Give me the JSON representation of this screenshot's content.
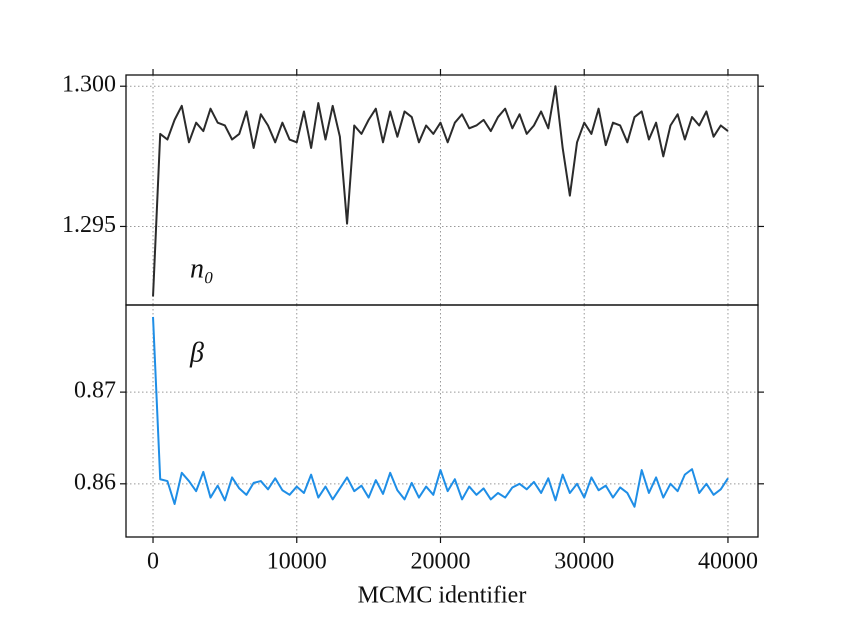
{
  "chart_data": [
    {
      "type": "line",
      "annotation": "n₀",
      "color": "#2b2b2b",
      "x": [
        0,
        500,
        1000,
        1500,
        2000,
        2500,
        3000,
        3500,
        4000,
        4500,
        5000,
        5500,
        6000,
        6500,
        7000,
        7500,
        8000,
        8500,
        9000,
        9500,
        10000,
        10500,
        11000,
        11500,
        12000,
        12500,
        13000,
        13500,
        14000,
        14500,
        15000,
        15500,
        16000,
        16500,
        17000,
        17500,
        18000,
        18500,
        19000,
        19500,
        20000,
        20500,
        21000,
        21500,
        22000,
        22500,
        23000,
        23500,
        24000,
        24500,
        25000,
        25500,
        26000,
        26500,
        27000,
        27500,
        28000,
        28500,
        29000,
        29500,
        30000,
        30500,
        31000,
        31500,
        32000,
        32500,
        33000,
        33500,
        34000,
        34500,
        35000,
        35500,
        36000,
        36500,
        37000,
        37500,
        38000,
        38500,
        39000,
        39500,
        40000
      ],
      "values": [
        1.2925,
        1.2983,
        1.2981,
        1.2988,
        1.2993,
        1.298,
        1.2987,
        1.2984,
        1.2992,
        1.2987,
        1.2986,
        1.2981,
        1.2983,
        1.2991,
        1.2978,
        1.299,
        1.2986,
        1.298,
        1.2987,
        1.2981,
        1.298,
        1.2991,
        1.2978,
        1.2994,
        1.2981,
        1.2993,
        1.2982,
        1.2951,
        1.2986,
        1.2983,
        1.2988,
        1.2992,
        1.298,
        1.2991,
        1.2982,
        1.2991,
        1.2989,
        1.298,
        1.2986,
        1.2983,
        1.2987,
        1.298,
        1.2987,
        1.299,
        1.2985,
        1.2986,
        1.2988,
        1.2984,
        1.2989,
        1.2992,
        1.2985,
        1.299,
        1.2983,
        1.2986,
        1.2991,
        1.2985,
        1.3,
        1.2978,
        1.2961,
        1.298,
        1.2987,
        1.2983,
        1.2992,
        1.2979,
        1.2987,
        1.2986,
        1.298,
        1.2989,
        1.2991,
        1.2981,
        1.2987,
        1.2975,
        1.2986,
        1.299,
        1.2981,
        1.2989,
        1.2986,
        1.2991,
        1.2982,
        1.2986,
        1.2984
      ],
      "xlim": [
        -1880,
        42090
      ],
      "xticks": [
        0,
        10000,
        20000,
        30000,
        40000
      ],
      "ylim": [
        1.2922,
        1.3004
      ],
      "yticks": [
        1.295,
        {
          "value": 1.3,
          "label": "1.300"
        }
      ],
      "grid": true
    },
    {
      "type": "line",
      "annotation": "β",
      "color": "#1f8ee6",
      "x_label": "MCMC identifier",
      "x": [
        0,
        500,
        1000,
        1500,
        2000,
        2500,
        3000,
        3500,
        4000,
        4500,
        5000,
        5500,
        6000,
        6500,
        7000,
        7500,
        8000,
        8500,
        9000,
        9500,
        10000,
        10500,
        11000,
        11500,
        12000,
        12500,
        13000,
        13500,
        14000,
        14500,
        15000,
        15500,
        16000,
        16500,
        17000,
        17500,
        18000,
        18500,
        19000,
        19500,
        20000,
        20500,
        21000,
        21500,
        22000,
        22500,
        23000,
        23500,
        24000,
        24500,
        25000,
        25500,
        26000,
        26500,
        27000,
        27500,
        28000,
        28500,
        29000,
        29500,
        30000,
        30500,
        31000,
        31500,
        32000,
        32500,
        33000,
        33500,
        34000,
        34500,
        35000,
        35500,
        36000,
        36500,
        37000,
        37500,
        38000,
        38500,
        39000,
        39500,
        40000
      ],
      "values": [
        0.8782,
        0.8605,
        0.8603,
        0.8578,
        0.8612,
        0.8603,
        0.8592,
        0.8613,
        0.8585,
        0.8598,
        0.8582,
        0.8607,
        0.8595,
        0.8588,
        0.8601,
        0.8603,
        0.8594,
        0.8606,
        0.8593,
        0.8588,
        0.8597,
        0.859,
        0.861,
        0.8585,
        0.8597,
        0.8583,
        0.8595,
        0.8607,
        0.8592,
        0.8598,
        0.8585,
        0.8604,
        0.8589,
        0.8612,
        0.8593,
        0.8583,
        0.8601,
        0.8585,
        0.8597,
        0.8588,
        0.8615,
        0.8592,
        0.8605,
        0.8583,
        0.8597,
        0.8588,
        0.8595,
        0.8583,
        0.859,
        0.8585,
        0.8596,
        0.86,
        0.8594,
        0.8602,
        0.859,
        0.8606,
        0.8582,
        0.861,
        0.859,
        0.86,
        0.8585,
        0.8607,
        0.8593,
        0.8598,
        0.8585,
        0.8596,
        0.859,
        0.8575,
        0.8615,
        0.859,
        0.8607,
        0.8585,
        0.86,
        0.8592,
        0.861,
        0.8616,
        0.859,
        0.86,
        0.8588,
        0.8594,
        0.8606
      ],
      "xlim": [
        -1880,
        42090
      ],
      "xticks": [
        0,
        10000,
        20000,
        30000,
        40000
      ],
      "ylim": [
        0.8542,
        0.8795
      ],
      "yticks": [
        0.86,
        0.87
      ],
      "grid": true
    }
  ]
}
